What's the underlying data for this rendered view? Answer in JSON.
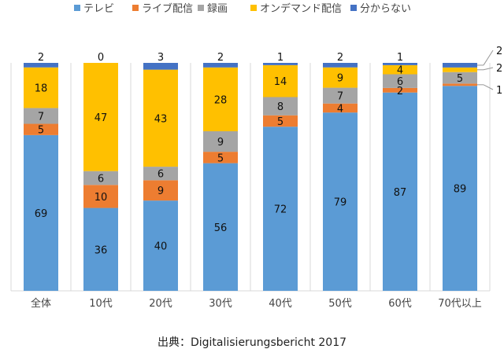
{
  "chart_data": {
    "type": "bar",
    "stacked": true,
    "percent_stacked": true,
    "categories": [
      "全体",
      "10代",
      "20代",
      "30代",
      "40代",
      "50代",
      "60代",
      "70代以上"
    ],
    "series": [
      {
        "name": "テレビ",
        "color": "#5B9BD5",
        "values": [
          69,
          36,
          40,
          56,
          72,
          79,
          87,
          89
        ]
      },
      {
        "name": "ライブ配信",
        "color": "#ED7D31",
        "values": [
          5,
          10,
          9,
          5,
          5,
          4,
          2,
          1
        ]
      },
      {
        "name": "録画",
        "color": "#A5A5A5",
        "values": [
          7,
          6,
          6,
          9,
          8,
          7,
          6,
          5
        ]
      },
      {
        "name": "オンデマンド配信",
        "color": "#FFC000",
        "values": [
          18,
          47,
          43,
          28,
          14,
          9,
          4,
          2
        ]
      },
      {
        "name": "分からない",
        "color": "#4472C4",
        "values": [
          2,
          0,
          3,
          2,
          1,
          2,
          1,
          2
        ]
      }
    ],
    "xlabel": "",
    "ylabel": "",
    "grid": "vertical",
    "legend_position": "top",
    "outside_labels": {
      "category": "70代以上",
      "note": "small segments labelled outside the bar with leader lines"
    }
  },
  "source": {
    "text": "出典：Digitalisierungsbericht 2017"
  }
}
